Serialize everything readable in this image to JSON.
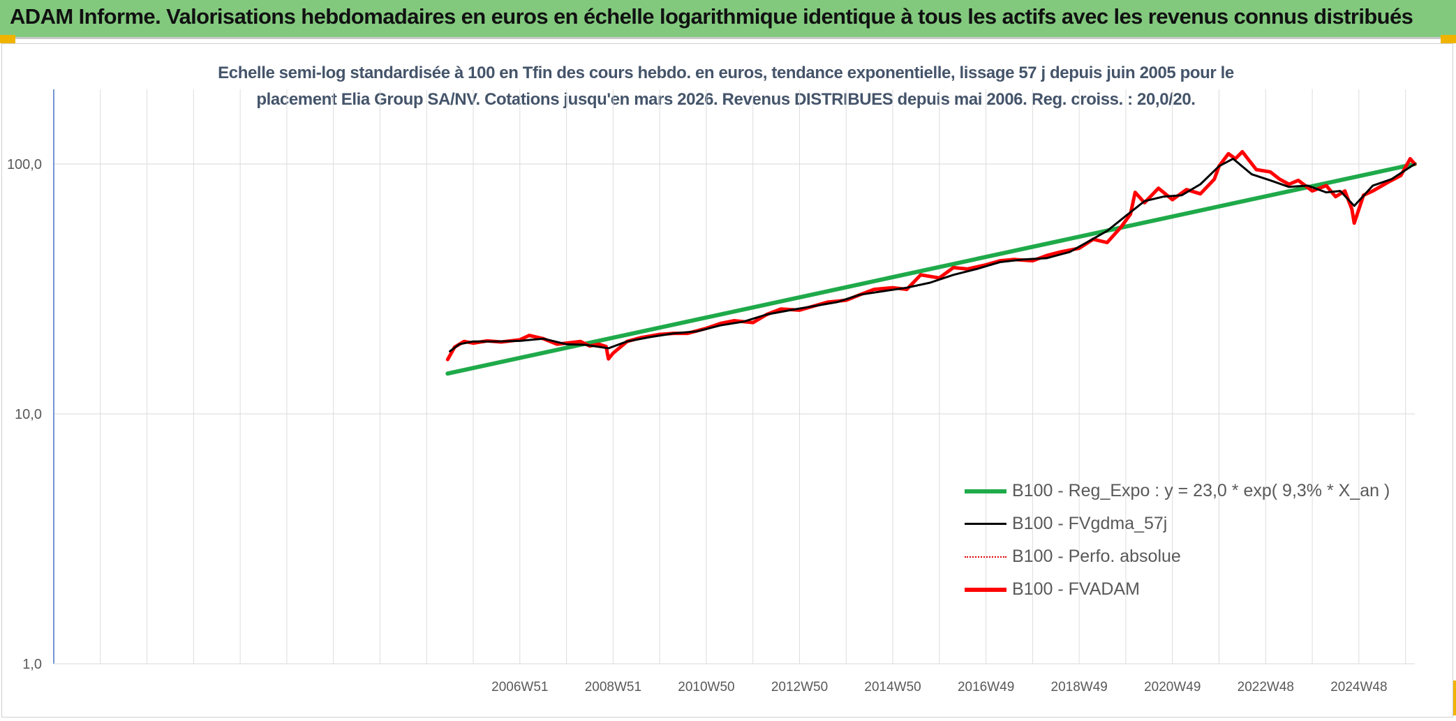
{
  "banner": {
    "title": "ADAM Informe. Valorisations hebdomadaires en euros en échelle logarithmique identique à tous les actifs avec les revenus connus distribués"
  },
  "colors": {
    "banner_bg": "#82c97e",
    "accent": "#f0b400",
    "regression": "#1faa4a",
    "fvgdma": "#000000",
    "perfo": "#e00000",
    "fvadam": "#ff0000",
    "title_text": "#44546a"
  },
  "chart_data": {
    "type": "line",
    "title_line1": "Echelle semi-log standardisée à 100 en Tfin des cours hebdo. en euros, tendance exponentielle, lissage 57 j depuis juin 2005 pour le",
    "title_line2": "placement Elia Group SA/NV. Cotations jusqu'en mars 2026. Revenus DISTRIBUES depuis mai 2006. Reg. croiss. : 20,0/20.",
    "y_scale": "log",
    "ylim": [
      1,
      200
    ],
    "y_ticks": [
      {
        "value": 1,
        "label": "1,0"
      },
      {
        "value": 10,
        "label": "10,0"
      },
      {
        "value": 100,
        "label": "100,0"
      }
    ],
    "xlim": [
      1997.0,
      2026.2
    ],
    "x_ticks": [
      {
        "x": 2007.0,
        "label": "2006W51"
      },
      {
        "x": 2009.0,
        "label": "2008W51"
      },
      {
        "x": 2011.0,
        "label": "2010W50"
      },
      {
        "x": 2013.0,
        "label": "2012W50"
      },
      {
        "x": 2015.0,
        "label": "2014W50"
      },
      {
        "x": 2017.0,
        "label": "2016W49"
      },
      {
        "x": 2019.0,
        "label": "2018W49"
      },
      {
        "x": 2021.0,
        "label": "2020W49"
      },
      {
        "x": 2023.0,
        "label": "2022W48"
      },
      {
        "x": 2025.0,
        "label": "2024W48"
      }
    ],
    "vertical_gridlines_x": [
      1998,
      1999,
      2000,
      2001,
      2002,
      2003,
      2004,
      2005,
      2006,
      2007,
      2008,
      2009,
      2010,
      2011,
      2012,
      2013,
      2014,
      2015,
      2016,
      2017,
      2018,
      2019,
      2020,
      2021,
      2022,
      2023,
      2024,
      2025,
      2026
    ],
    "grid": true,
    "legend_position": "bottom-right",
    "series": [
      {
        "name": "B100 - Reg_Expo : y = 23,0 * exp( 9,3% *  X_an )",
        "style": "solid-thick",
        "x": [
          2005.45,
          2026.2
        ],
        "y": [
          14.5,
          100.0
        ]
      },
      {
        "name": "B100 - FVgdma_57j",
        "style": "solid-thin",
        "x": [
          2005.5,
          2005.7,
          2006.0,
          2006.5,
          2007.0,
          2007.5,
          2008.0,
          2008.4,
          2008.9,
          2009.3,
          2009.8,
          2010.3,
          2010.8,
          2011.3,
          2011.8,
          2012.3,
          2012.8,
          2013.3,
          2013.8,
          2014.3,
          2014.8,
          2015.3,
          2015.8,
          2016.3,
          2016.8,
          2017.3,
          2017.8,
          2018.3,
          2018.8,
          2019.2,
          2019.6,
          2020.0,
          2020.4,
          2020.8,
          2021.2,
          2021.6,
          2022.0,
          2022.3,
          2022.7,
          2023.1,
          2023.5,
          2023.9,
          2024.3,
          2024.6,
          2024.9,
          2025.3,
          2025.7,
          2026.2
        ],
        "y": [
          17.8,
          19.0,
          19.5,
          19.5,
          19.6,
          20.0,
          19.0,
          18.9,
          18.3,
          19.5,
          20.3,
          21.0,
          21.4,
          22.6,
          23.4,
          25.0,
          26.0,
          27.0,
          28.0,
          30.0,
          31.0,
          32.0,
          33.5,
          36.0,
          38.0,
          40.5,
          41.5,
          42.0,
          44.5,
          49.0,
          54.0,
          62.0,
          71.0,
          74.0,
          75.0,
          83.0,
          98.0,
          105.0,
          91.0,
          86.0,
          81.0,
          82.0,
          77.0,
          78.0,
          68.0,
          82.0,
          87.0,
          100.0
        ]
      },
      {
        "name": "B100 - Perfo. absolue",
        "style": "dotted",
        "x": [],
        "y": []
      },
      {
        "name": "B100 - FVADAM",
        "style": "solid-thick",
        "x": [
          2005.45,
          2005.6,
          2005.8,
          2006.0,
          2006.3,
          2006.6,
          2007.0,
          2007.2,
          2007.5,
          2007.8,
          2008.0,
          2008.3,
          2008.5,
          2008.7,
          2008.85,
          2008.9,
          2009.0,
          2009.3,
          2009.6,
          2010.0,
          2010.3,
          2010.6,
          2011.0,
          2011.3,
          2011.6,
          2012.0,
          2012.3,
          2012.6,
          2013.0,
          2013.3,
          2013.6,
          2014.0,
          2014.3,
          2014.6,
          2015.0,
          2015.3,
          2015.6,
          2016.0,
          2016.3,
          2016.6,
          2017.0,
          2017.3,
          2017.6,
          2018.0,
          2018.3,
          2018.6,
          2019.0,
          2019.3,
          2019.6,
          2019.9,
          2020.1,
          2020.2,
          2020.4,
          2020.7,
          2021.0,
          2021.3,
          2021.6,
          2021.9,
          2022.0,
          2022.2,
          2022.35,
          2022.5,
          2022.8,
          2023.1,
          2023.3,
          2023.5,
          2023.7,
          2024.0,
          2024.3,
          2024.5,
          2024.7,
          2024.85,
          2024.9,
          2025.1,
          2025.3,
          2025.6,
          2025.9,
          2026.1,
          2026.2
        ],
        "y": [
          16.5,
          18.5,
          19.5,
          19.2,
          19.6,
          19.4,
          19.8,
          20.6,
          20.0,
          19.0,
          19.2,
          19.5,
          18.7,
          19.0,
          18.6,
          16.6,
          17.5,
          19.5,
          20.2,
          20.8,
          21.0,
          21.0,
          22.0,
          23.0,
          23.6,
          23.2,
          25.0,
          26.3,
          26.0,
          27.0,
          28.0,
          28.5,
          30.0,
          31.5,
          32.0,
          31.5,
          36.0,
          35.0,
          38.5,
          38.0,
          39.5,
          41.0,
          41.5,
          41.0,
          43.0,
          44.5,
          46.0,
          50.0,
          48.5,
          56.0,
          63.0,
          77.0,
          70.0,
          80.0,
          72.0,
          79.0,
          76.0,
          87.0,
          98.0,
          110.0,
          105.0,
          112.0,
          95.0,
          93.0,
          87.0,
          83.0,
          86.0,
          78.0,
          82.0,
          74.0,
          78.0,
          66.0,
          58.0,
          75.0,
          78.0,
          84.0,
          90.0,
          105.0,
          100.0
        ]
      }
    ]
  }
}
